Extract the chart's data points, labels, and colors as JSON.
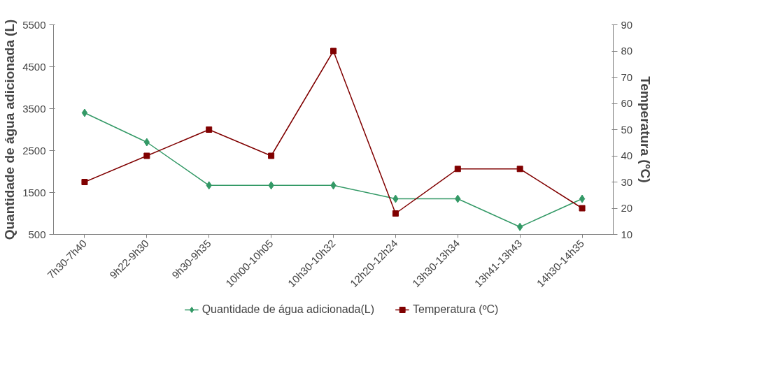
{
  "chart_data": {
    "type": "line",
    "ylabel": "Quantidade de água adicionada (L)",
    "y2label": "Temperatura (ºC)",
    "categories": [
      "7h30-7h40",
      "9h22-9h30",
      "9h30-9h35",
      "10h00-10h05",
      "10h30-10h32",
      "12h20-12h24",
      "13h30-13h34",
      "13h41-13h43",
      "14h30-14h35"
    ],
    "series": [
      {
        "name": "Quantidade de água adicionada(L)",
        "color": "#339966",
        "marker": "diamond",
        "values": [
          3400,
          2700,
          1670,
          1670,
          1670,
          1350,
          1350,
          680,
          1350
        ]
      },
      {
        "name": "Temperatura (ºC)",
        "color": "#800000",
        "marker": "square",
        "axis": "y2",
        "values": [
          30,
          40,
          50,
          40,
          80,
          18,
          35,
          35,
          20
        ]
      }
    ],
    "ylim": [
      500,
      5500
    ],
    "yticks": [
      500,
      1500,
      2500,
      3500,
      4500,
      5500
    ],
    "y2lim": [
      10,
      90
    ],
    "y2ticks": [
      10,
      20,
      30,
      40,
      50,
      60,
      70,
      80,
      90
    ],
    "grid": false,
    "legend": "bottom",
    "line_style": "solid"
  }
}
